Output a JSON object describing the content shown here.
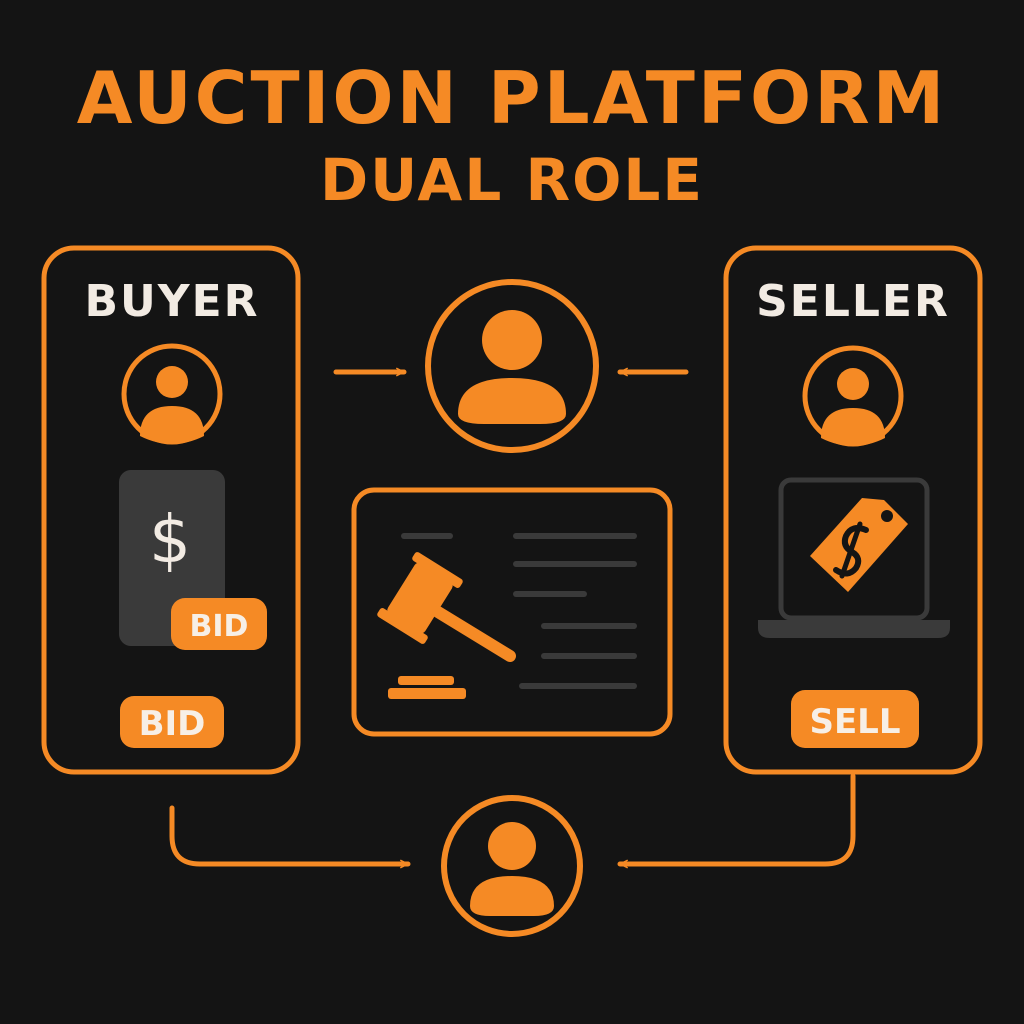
{
  "title": "AUCTION PLATFORM",
  "subtitle": "DUAL ROLE",
  "colors": {
    "accent": "#f58a25",
    "background": "#141414",
    "text_light": "#f2ebe3",
    "device_gray": "#3a3a3a"
  },
  "buyer": {
    "label": "BUYER",
    "phone_symbol": "$",
    "phone_badge": "BID",
    "button": "BID",
    "icons": [
      "user-icon",
      "phone-icon",
      "dollar-icon"
    ]
  },
  "seller": {
    "label": "SELLER",
    "button": "SELL",
    "icons": [
      "user-icon",
      "laptop-icon",
      "price-tag-icon"
    ]
  },
  "center": {
    "icons": [
      "user-icon",
      "auction-gavel-icon",
      "listing-lines-icon"
    ]
  },
  "bottom": {
    "icons": [
      "user-icon"
    ]
  }
}
